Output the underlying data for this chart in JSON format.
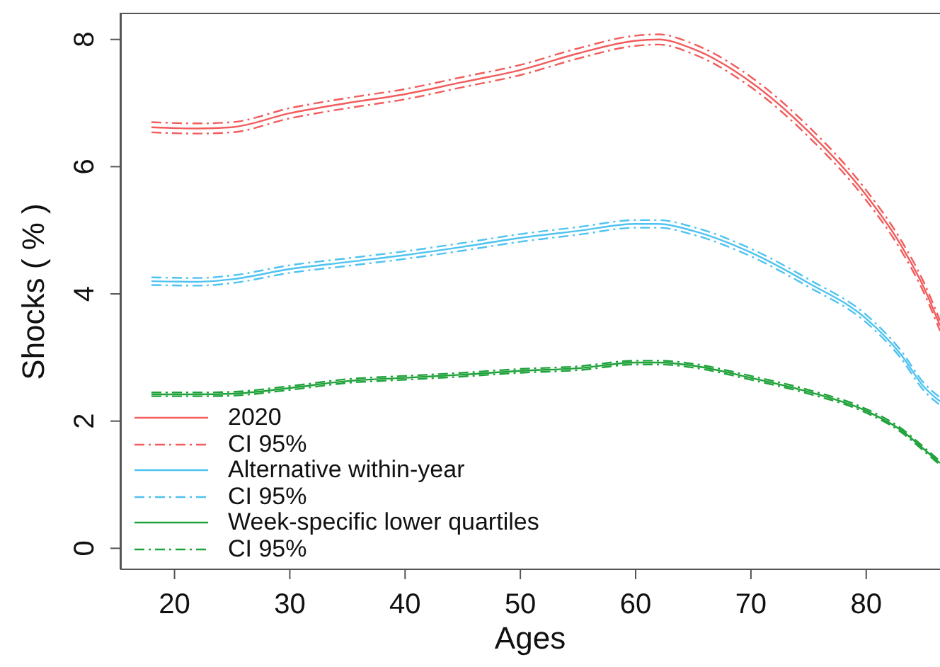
{
  "chart_data": {
    "type": "line",
    "xlabel": "Ages",
    "ylabel": "Shocks ( % )",
    "x": [
      18,
      22,
      25,
      30,
      35,
      40,
      45,
      50,
      55,
      60,
      62,
      65,
      70,
      75,
      80,
      83,
      85,
      86.4
    ],
    "xlim": [
      15.3,
      86.4
    ],
    "xticks": [
      20,
      30,
      40,
      50,
      60,
      70,
      80
    ],
    "ylim": [
      -0.33,
      8.42
    ],
    "yticks": [
      0,
      2,
      4,
      6,
      8
    ],
    "grid": false,
    "legend": "bottom left",
    "series": [
      {
        "name": "2020",
        "color": "#f25c5c",
        "line_style": "solid",
        "values": [
          6.62,
          6.6,
          6.62,
          6.84,
          7.0,
          7.14,
          7.33,
          7.52,
          7.78,
          7.98,
          8.0,
          7.85,
          7.33,
          6.55,
          5.55,
          4.77,
          4.1,
          3.5
        ]
      },
      {
        "name": "CI 95%",
        "color": "#f25c5c",
        "line_style": "dashed",
        "values": [
          6.7,
          6.68,
          6.7,
          6.92,
          7.08,
          7.22,
          7.41,
          7.6,
          7.86,
          8.06,
          8.08,
          7.93,
          7.41,
          6.63,
          5.63,
          4.85,
          4.18,
          3.58
        ]
      },
      {
        "color": "#f25c5c",
        "line_style": "dashed",
        "values": [
          6.54,
          6.52,
          6.54,
          6.76,
          6.92,
          7.06,
          7.25,
          7.44,
          7.7,
          7.9,
          7.92,
          7.77,
          7.25,
          6.47,
          5.47,
          4.69,
          4.02,
          3.42
        ]
      },
      {
        "name": "Alternative within-year",
        "color": "#4fc3f0",
        "line_style": "solid",
        "values": [
          4.2,
          4.19,
          4.23,
          4.39,
          4.5,
          4.61,
          4.74,
          4.88,
          4.99,
          5.1,
          5.1,
          4.99,
          4.65,
          4.17,
          3.61,
          3.05,
          2.54,
          2.31
        ]
      },
      {
        "name": "CI 95%",
        "color": "#4fc3f0",
        "line_style": "dashed",
        "values": [
          4.26,
          4.25,
          4.29,
          4.45,
          4.56,
          4.67,
          4.8,
          4.94,
          5.05,
          5.16,
          5.16,
          5.05,
          4.71,
          4.23,
          3.67,
          3.11,
          2.6,
          2.37
        ]
      },
      {
        "color": "#4fc3f0",
        "line_style": "dashed",
        "values": [
          4.14,
          4.13,
          4.17,
          4.33,
          4.44,
          4.55,
          4.68,
          4.82,
          4.93,
          5.04,
          5.04,
          4.93,
          4.59,
          4.11,
          3.55,
          2.99,
          2.48,
          2.25
        ]
      },
      {
        "name": "Week-specific lower quartiles",
        "color": "#1fa23a",
        "line_style": "solid",
        "values": [
          2.42,
          2.42,
          2.43,
          2.52,
          2.63,
          2.68,
          2.73,
          2.79,
          2.83,
          2.92,
          2.92,
          2.87,
          2.68,
          2.46,
          2.16,
          1.86,
          1.56,
          1.34
        ]
      },
      {
        "name": "CI 95%",
        "color": "#1fa23a",
        "line_style": "dashed",
        "values": [
          2.45,
          2.45,
          2.46,
          2.55,
          2.66,
          2.71,
          2.76,
          2.82,
          2.86,
          2.95,
          2.95,
          2.9,
          2.71,
          2.49,
          2.19,
          1.89,
          1.59,
          1.37
        ]
      },
      {
        "color": "#1fa23a",
        "line_style": "dashed",
        "values": [
          2.39,
          2.39,
          2.4,
          2.49,
          2.6,
          2.65,
          2.7,
          2.76,
          2.8,
          2.89,
          2.89,
          2.84,
          2.65,
          2.43,
          2.13,
          1.83,
          1.53,
          1.31
        ]
      }
    ]
  }
}
